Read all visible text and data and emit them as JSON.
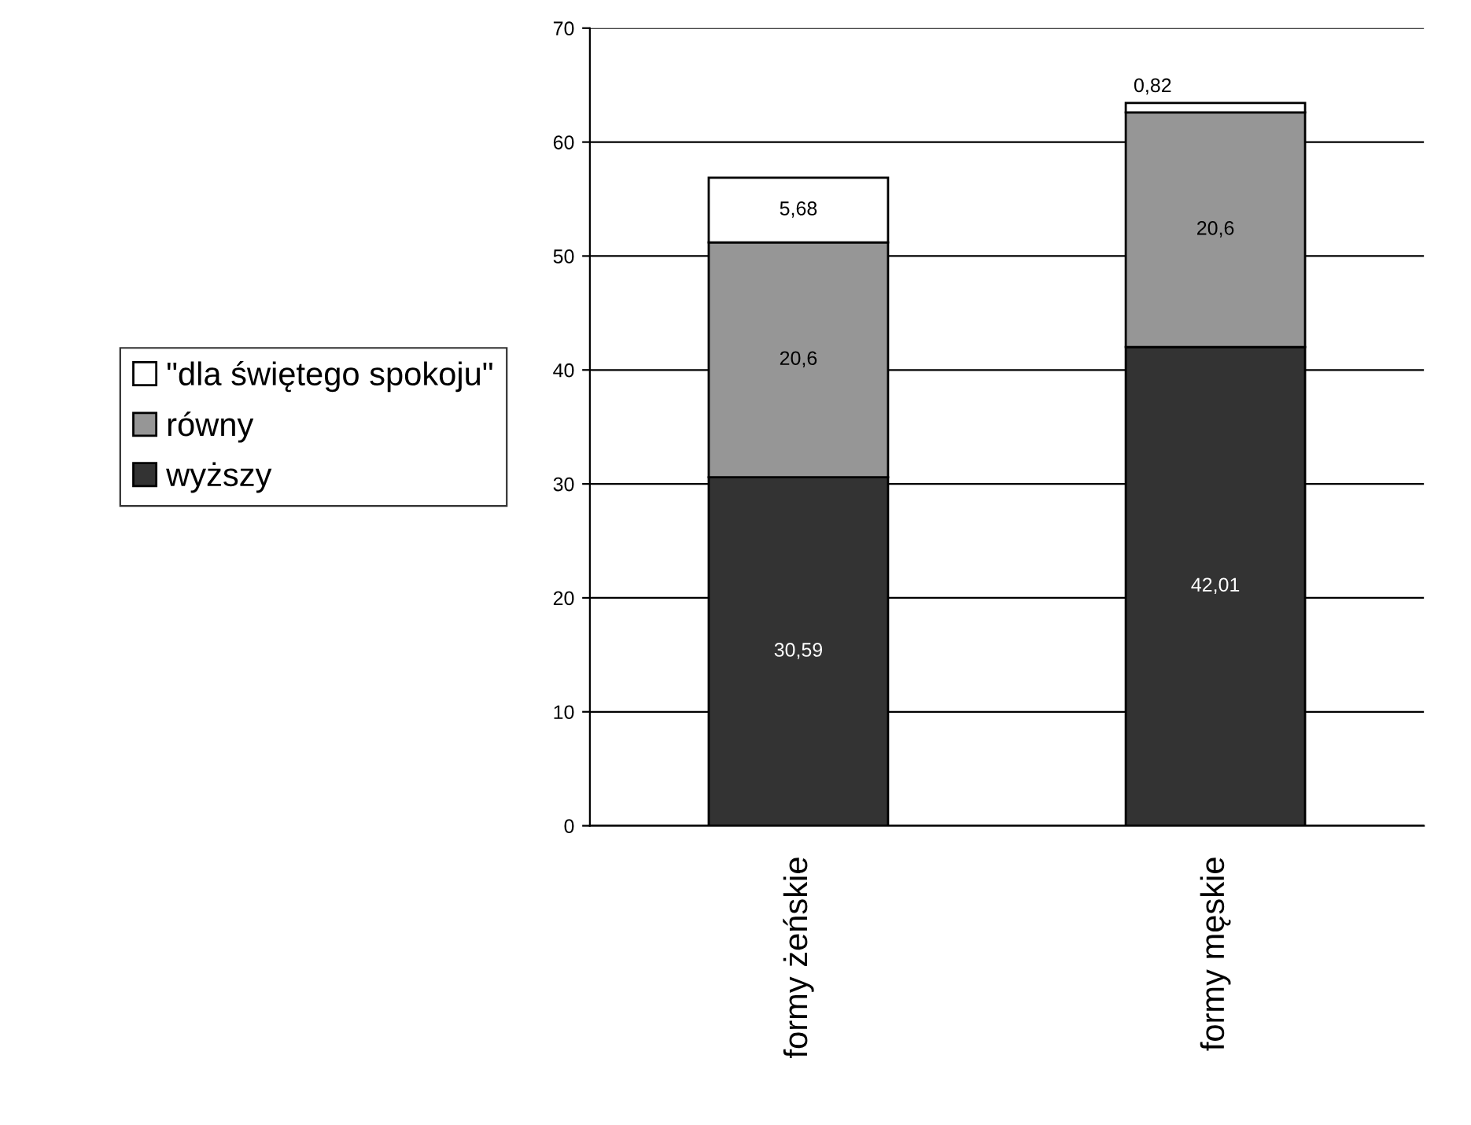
{
  "chart_data": {
    "type": "bar",
    "stacked": true,
    "categories": [
      "formy żeńskie",
      "formy męskie"
    ],
    "series": [
      {
        "name": "wyższy",
        "color": "#333333",
        "values": [
          30.59,
          42.01
        ],
        "value_labels": [
          "30,59",
          "42,01"
        ]
      },
      {
        "name": "równy",
        "color": "#969696",
        "values": [
          20.6,
          20.6
        ],
        "value_labels": [
          "20,6",
          "20,6"
        ]
      },
      {
        "name": "\"dla świętego spokoju\"",
        "color": "#ffffff",
        "values": [
          5.68,
          0.82
        ],
        "value_labels": [
          "5,68",
          "0,82"
        ]
      }
    ],
    "ylim": [
      0,
      70
    ],
    "yticks": [
      0,
      10,
      20,
      30,
      40,
      50,
      60,
      70
    ],
    "grid": "y",
    "legend": "left"
  }
}
